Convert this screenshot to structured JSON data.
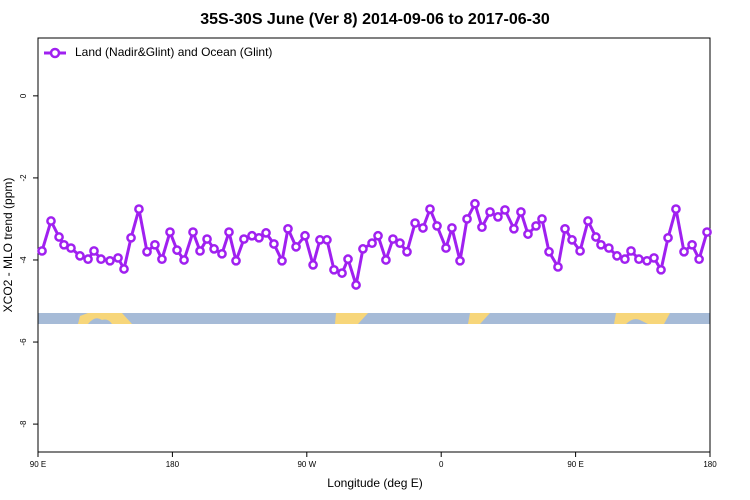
{
  "chart_data": {
    "type": "line",
    "title": "35S-30S June (Ver 8)   2014-09-06 to 2017-06-30",
    "xlabel": "Longitude (deg E)",
    "ylabel": "XCO2 - MLO trend (ppm)",
    "xlim": [
      90,
      540
    ],
    "ylim": [
      -8.68,
      1.41
    ],
    "xticks": [
      {
        "value": 90,
        "label": "90 E"
      },
      180,
      {
        "value": 270,
        "label": "90 W"
      },
      {
        "value": 360,
        "label": "0"
      },
      {
        "value": 450,
        "label": "90 E"
      },
      {
        "value": 540,
        "label": "180"
      }
    ],
    "yticks": [
      0,
      -2,
      -4,
      -6,
      -8
    ],
    "legend": "top-left",
    "x": [
      92.7,
      98.7,
      104.1,
      107.4,
      112.1,
      118.1,
      123.5,
      127.5,
      132.2,
      138.2,
      143.6,
      147.6,
      152.3,
      157.6,
      163.0,
      168.3,
      173.0,
      178.4,
      183.1,
      187.8,
      193.8,
      198.5,
      203.2,
      207.9,
      213.2,
      217.9,
      222.6,
      227.9,
      233.3,
      238.0,
      242.7,
      248.0,
      253.4,
      257.4,
      262.8,
      268.8,
      274.2,
      278.8,
      283.5,
      288.2,
      293.6,
      297.6,
      303.0,
      307.6,
      313.7,
      317.7,
      323.0,
      327.7,
      332.4,
      337.1,
      342.5,
      347.8,
      352.5,
      357.2,
      363.2,
      367.2,
      372.6,
      377.3,
      382.6,
      387.3,
      392.7,
      398.0,
      402.7,
      408.7,
      413.4,
      418.1,
      423.5,
      427.5,
      432.2,
      438.2,
      442.9,
      447.6,
      453.0,
      458.3,
      463.6,
      467.0,
      472.3,
      477.7,
      483.0,
      487.1,
      492.4,
      497.8,
      502.5,
      507.2,
      511.9,
      517.2,
      522.6,
      528.0,
      532.7,
      538.0
    ],
    "series": [
      {
        "name": "Land (Nadir&Glint) and Ocean (Glint)",
        "color": "#a020f0",
        "values": [
          -3.78,
          -3.05,
          -3.44,
          -3.63,
          -3.71,
          -3.9,
          -3.98,
          -3.78,
          -3.98,
          -4.02,
          -3.95,
          -4.22,
          -3.46,
          -2.76,
          -3.8,
          -3.63,
          -3.98,
          -3.32,
          -3.76,
          -4.0,
          -3.32,
          -3.78,
          -3.49,
          -3.73,
          -3.85,
          -3.32,
          -4.02,
          -3.49,
          -3.41,
          -3.46,
          -3.34,
          -3.61,
          -4.02,
          -3.24,
          -3.68,
          -3.41,
          -4.12,
          -3.51,
          -3.51,
          -4.24,
          -4.32,
          -3.98,
          -4.61,
          -3.73,
          -3.59,
          -3.41,
          -4.0,
          -3.49,
          -3.59,
          -3.8,
          -3.1,
          -3.22,
          -2.76,
          -3.17,
          -3.71,
          -3.22,
          -4.02,
          -3.0,
          -2.63,
          -3.2,
          -2.83,
          -2.95,
          -2.78,
          -3.24,
          -2.83,
          -3.37,
          -3.17,
          -3.0,
          -3.8,
          -4.17,
          -3.24,
          -3.51,
          -3.78,
          -3.05,
          -3.44,
          -3.63,
          -3.71,
          -3.9,
          -3.98,
          -3.78,
          -3.98,
          -4.02,
          -3.95,
          -4.24,
          -3.46,
          -2.76,
          -3.8,
          -3.63,
          -3.98,
          -3.32
        ]
      }
    ]
  }
}
